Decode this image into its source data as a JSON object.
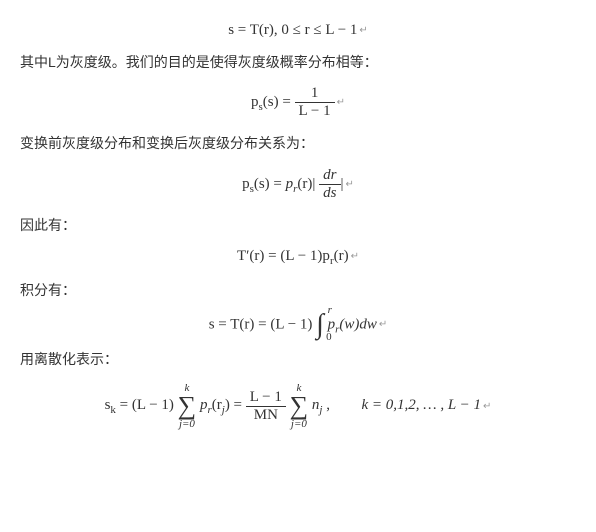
{
  "equations": {
    "eq1": "s = T(r), 0 ≤ r ≤ L − 1",
    "eq2_lhs": "p",
    "eq2_sub": "s",
    "eq2_arg": "(s) =",
    "eq2_num": "1",
    "eq2_den": "L − 1",
    "eq3_lhs": "p",
    "eq3_sub": "s",
    "eq3_mid": "(s) = ",
    "eq3_pr": "p",
    "eq3_pr_sub": "r",
    "eq3_pr_arg": "(r)|",
    "eq3_frac_num": "dr",
    "eq3_frac_den": "ds",
    "eq3_end": "|",
    "eq4": "T′(r) = (L − 1)p",
    "eq4_sub": "r",
    "eq4_end": "(r)",
    "eq5_lhs": "s = T(r) = (L − 1)",
    "eq5_int_top": "r",
    "eq5_int_bot": "0",
    "eq5_rhs": "p",
    "eq5_rhs_sub": "r",
    "eq5_rhs_end": "(w)dw",
    "eq6_lhs": "s",
    "eq6_sub": "k",
    "eq6_mid": " = (L − 1)",
    "eq6_sum1_top": "k",
    "eq6_sum1_bot": "j=0",
    "eq6_pr": "p",
    "eq6_pr_sub": "r",
    "eq6_pr_arg": "(r",
    "eq6_pr_arg_sub": "j",
    "eq6_pr_end": ") =",
    "eq6_frac_num": "L − 1",
    "eq6_frac_den": "MN",
    "eq6_sum2_top": "k",
    "eq6_sum2_bot": "j=0",
    "eq6_n": "n",
    "eq6_n_sub": "j",
    "eq6_comma": " ,",
    "eq6_k": "k = 0,1,2, … , L − 1"
  },
  "text": {
    "line1": "其中L为灰度级。我们的目的是使得灰度级概率分布相等：",
    "line2": "变换前灰度级分布和变换后灰度级分布关系为：",
    "line3": "因此有：",
    "line4": "积分有：",
    "line5": "用离散化表示："
  },
  "marker": "↵",
  "style": {
    "font_size_body": 14,
    "font_size_eq": 15,
    "color_text": "#333333",
    "color_marker": "#999999",
    "background": "#ffffff"
  }
}
